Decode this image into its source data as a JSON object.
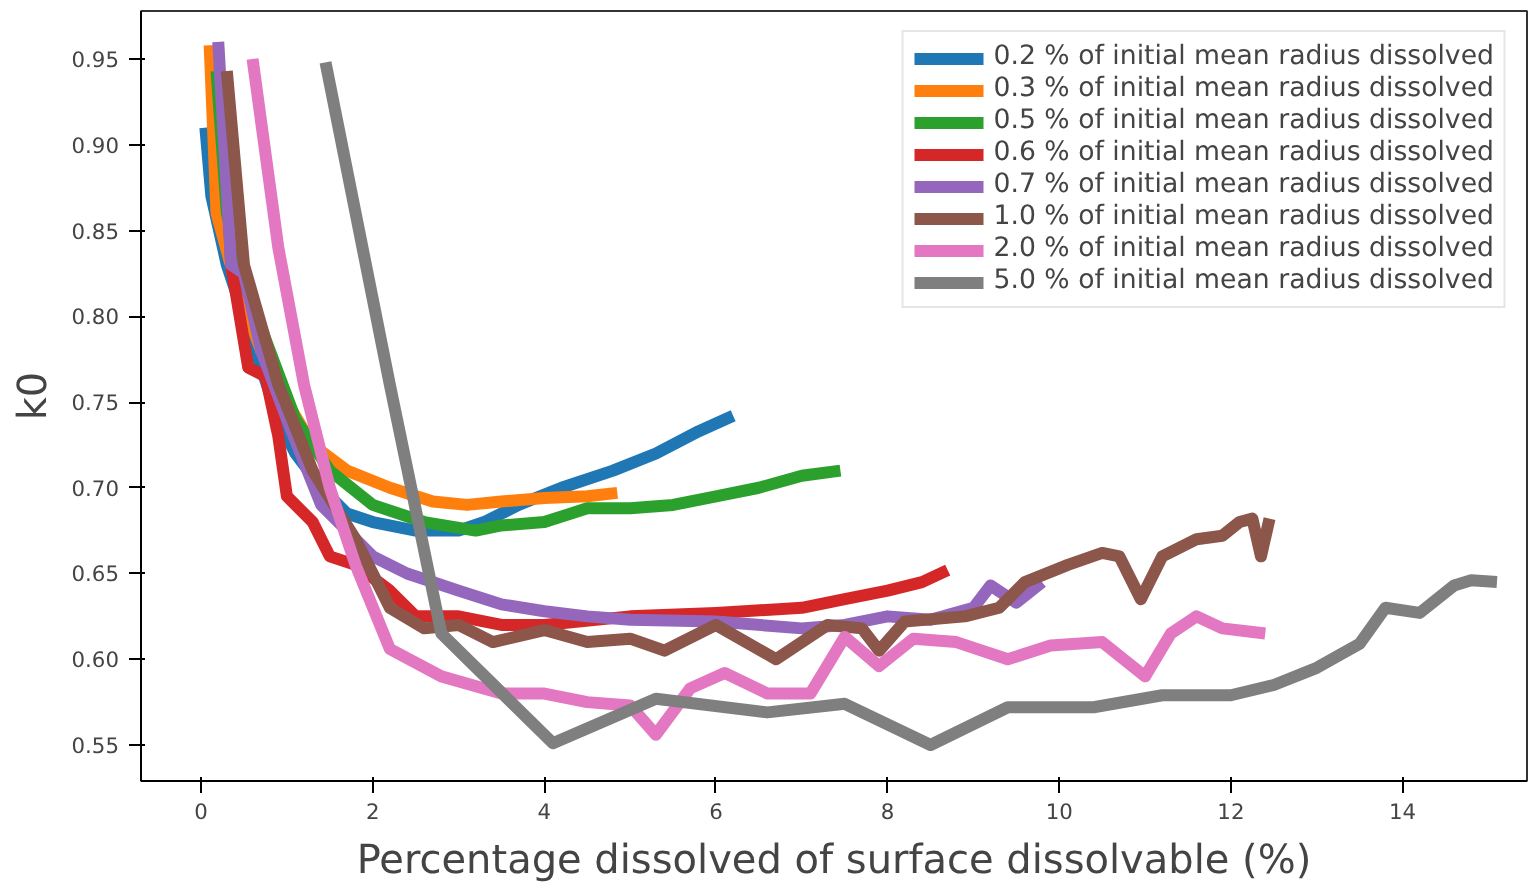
{
  "chart_data": {
    "type": "line",
    "xlabel": "Percentage dissolved of surface dissolvable (%)",
    "ylabel": "k0",
    "xlim": [
      -0.7,
      15.45
    ],
    "ylim": [
      0.529,
      0.978
    ],
    "xticks": [
      0,
      2,
      4,
      6,
      8,
      10,
      12,
      14
    ],
    "yticks": [
      {
        "value": 0.55,
        "label": "0.55"
      },
      {
        "value": 0.6,
        "label": "0.60"
      },
      {
        "value": 0.65,
        "label": "0.65"
      },
      {
        "value": 0.7,
        "label": "0.70"
      },
      {
        "value": 0.75,
        "label": "0.75"
      },
      {
        "value": 0.8,
        "label": "0.80"
      },
      {
        "value": 0.85,
        "label": "0.85"
      },
      {
        "value": 0.9,
        "label": "0.90"
      },
      {
        "value": 0.95,
        "label": "0.95"
      }
    ],
    "grid": false,
    "legend": "top right",
    "line_style": "solid",
    "series": [
      {
        "name": "0.2 % of initial mean radius dissolved",
        "color": "#1f77b4",
        "x": [
          0.05,
          0.12,
          0.3,
          0.5,
          0.7,
          0.9,
          1.1,
          1.4,
          1.7,
          2.0,
          2.5,
          3.0,
          3.3,
          3.7,
          4.2,
          4.8,
          5.3,
          5.8,
          6.2
        ],
        "values": [
          0.91,
          0.87,
          0.83,
          0.8,
          0.77,
          0.74,
          0.72,
          0.7,
          0.685,
          0.68,
          0.675,
          0.675,
          0.68,
          0.69,
          0.7,
          0.71,
          0.72,
          0.733,
          0.742
        ]
      },
      {
        "name": "0.3 % of initial mean radius dissolved",
        "color": "#ff7f0e",
        "x": [
          0.1,
          0.18,
          0.4,
          0.7,
          1.0,
          1.3,
          1.7,
          2.2,
          2.7,
          3.1,
          3.5,
          4.0,
          4.5,
          4.85
        ],
        "values": [
          0.958,
          0.86,
          0.82,
          0.78,
          0.75,
          0.725,
          0.71,
          0.7,
          0.692,
          0.69,
          0.692,
          0.694,
          0.695,
          0.697
        ]
      },
      {
        "name": "0.5 % of initial mean radius dissolved",
        "color": "#2ca02c",
        "x": [
          0.18,
          0.3,
          0.5,
          0.8,
          1.1,
          1.5,
          2.0,
          2.6,
          3.2,
          3.5,
          4.0,
          4.5,
          5.0,
          5.5,
          6.0,
          6.5,
          7.0,
          7.45
        ],
        "values": [
          0.943,
          0.86,
          0.82,
          0.78,
          0.74,
          0.71,
          0.69,
          0.68,
          0.675,
          0.678,
          0.68,
          0.688,
          0.688,
          0.69,
          0.695,
          0.7,
          0.707,
          0.71
        ]
      },
      {
        "name": "0.6 % of initial mean radius dissolved",
        "color": "#d62728",
        "x": [
          0.25,
          0.35,
          0.55,
          0.75,
          0.9,
          1.0,
          1.3,
          1.5,
          1.8,
          2.2,
          2.5,
          3.0,
          3.5,
          4.0,
          5.0,
          6.0,
          7.0,
          7.5,
          8.0,
          8.4,
          8.7
        ],
        "values": [
          0.94,
          0.83,
          0.77,
          0.765,
          0.73,
          0.695,
          0.68,
          0.66,
          0.655,
          0.64,
          0.625,
          0.625,
          0.62,
          0.62,
          0.625,
          0.627,
          0.63,
          0.635,
          0.64,
          0.645,
          0.652
        ]
      },
      {
        "name": "0.7 % of initial mean radius dissolved",
        "color": "#9467bd",
        "x": [
          0.2,
          0.35,
          0.5,
          0.7,
          1.0,
          1.4,
          2.0,
          2.4,
          3.0,
          3.5,
          4.0,
          4.5,
          5.0,
          6.0,
          7.0,
          7.5,
          8.0,
          8.5,
          9.0,
          9.2,
          9.5,
          9.8
        ],
        "values": [
          0.96,
          0.83,
          0.825,
          0.78,
          0.74,
          0.69,
          0.66,
          0.65,
          0.64,
          0.632,
          0.628,
          0.625,
          0.623,
          0.622,
          0.618,
          0.62,
          0.625,
          0.623,
          0.63,
          0.643,
          0.633,
          0.645
        ]
      },
      {
        "name": "1.0 % of initial mean radius dissolved",
        "color": "#8c564b",
        "x": [
          0.3,
          0.5,
          0.9,
          1.3,
          1.8,
          2.2,
          2.6,
          3.0,
          3.4,
          4.0,
          4.5,
          5.0,
          5.4,
          6.0,
          6.7,
          7.3,
          7.7,
          7.9,
          8.2,
          8.9,
          9.3,
          9.6,
          10.1,
          10.5,
          10.7,
          10.95,
          11.2,
          11.6,
          11.9,
          12.1,
          12.25,
          12.35,
          12.45
        ],
        "values": [
          0.943,
          0.83,
          0.76,
          0.71,
          0.67,
          0.63,
          0.618,
          0.62,
          0.61,
          0.617,
          0.61,
          0.612,
          0.605,
          0.62,
          0.6,
          0.62,
          0.618,
          0.605,
          0.622,
          0.625,
          0.63,
          0.645,
          0.655,
          0.662,
          0.66,
          0.635,
          0.66,
          0.67,
          0.672,
          0.68,
          0.682,
          0.66,
          0.682
        ]
      },
      {
        "name": "2.0 % of initial mean radius dissolved",
        "color": "#e377c2",
        "x": [
          0.6,
          0.9,
          1.2,
          1.5,
          1.8,
          2.2,
          2.8,
          3.5,
          4.0,
          4.5,
          5.0,
          5.3,
          5.7,
          6.1,
          6.6,
          7.1,
          7.5,
          7.9,
          8.3,
          8.8,
          9.4,
          9.9,
          10.5,
          11.0,
          11.3,
          11.6,
          11.9,
          12.4
        ],
        "values": [
          0.95,
          0.84,
          0.76,
          0.7,
          0.655,
          0.606,
          0.59,
          0.58,
          0.58,
          0.575,
          0.573,
          0.556,
          0.583,
          0.592,
          0.58,
          0.58,
          0.613,
          0.596,
          0.612,
          0.61,
          0.6,
          0.608,
          0.61,
          0.59,
          0.615,
          0.625,
          0.618,
          0.615
        ]
      },
      {
        "name": "5.0 % of initial mean radius dissolved",
        "color": "#7f7f7f",
        "x": [
          1.45,
          2.2,
          2.8,
          4.1,
          5.3,
          6.6,
          7.5,
          8.5,
          9.4,
          10.4,
          11.2,
          12.0,
          12.5,
          13.0,
          13.5,
          13.8,
          14.2,
          14.6,
          14.8,
          15.1
        ],
        "values": [
          0.948,
          0.76,
          0.615,
          0.551,
          0.577,
          0.569,
          0.574,
          0.55,
          0.572,
          0.572,
          0.579,
          0.579,
          0.585,
          0.595,
          0.609,
          0.63,
          0.627,
          0.643,
          0.646,
          0.645
        ]
      }
    ]
  }
}
